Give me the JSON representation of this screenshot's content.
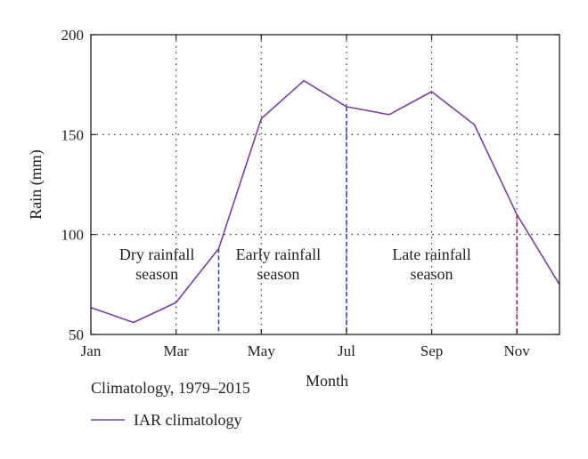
{
  "chart_data": {
    "type": "line",
    "xlabel": "Month",
    "ylabel": "Rain (mm)",
    "xlim": [
      1,
      12
    ],
    "ylim": [
      50,
      200
    ],
    "x_ticks": [
      {
        "label": "Jan",
        "x": 1
      },
      {
        "label": "Mar",
        "x": 3
      },
      {
        "label": "May",
        "x": 5
      },
      {
        "label": "Jul",
        "x": 7
      },
      {
        "label": "Sep",
        "x": 9
      },
      {
        "label": "Nov",
        "x": 11
      }
    ],
    "y_ticks": [
      50,
      100,
      150,
      200
    ],
    "grid": true,
    "series": [
      {
        "name": "IAR climatology",
        "color": "#7b3f9e",
        "x": [
          1,
          2,
          3,
          4,
          5,
          6,
          7,
          8,
          9,
          10,
          11,
          12
        ],
        "values": [
          63.5,
          56,
          66,
          93,
          158,
          177,
          164,
          160,
          171.5,
          155,
          110,
          75
        ]
      }
    ],
    "season_boundaries": [
      {
        "x": 4,
        "color": "#2b3a9b"
      },
      {
        "x": 7,
        "color": "#2b3a9b"
      },
      {
        "x": 11,
        "color": "#c2185b"
      }
    ],
    "annotations": [
      {
        "lines": [
          "Dry rainfall",
          "season"
        ],
        "x": 2.55,
        "y": 90
      },
      {
        "lines": [
          "Early rainfall",
          "season"
        ],
        "x": 5.4,
        "y": 90
      },
      {
        "lines": [
          "Late rainfall",
          "season"
        ],
        "x": 9.0,
        "y": 90
      }
    ],
    "legend": {
      "title": "Climatology, 1979–2015",
      "entries": [
        {
          "label": "IAR climatology",
          "color": "#7b3f9e"
        }
      ],
      "placement": "bottom-left"
    }
  }
}
